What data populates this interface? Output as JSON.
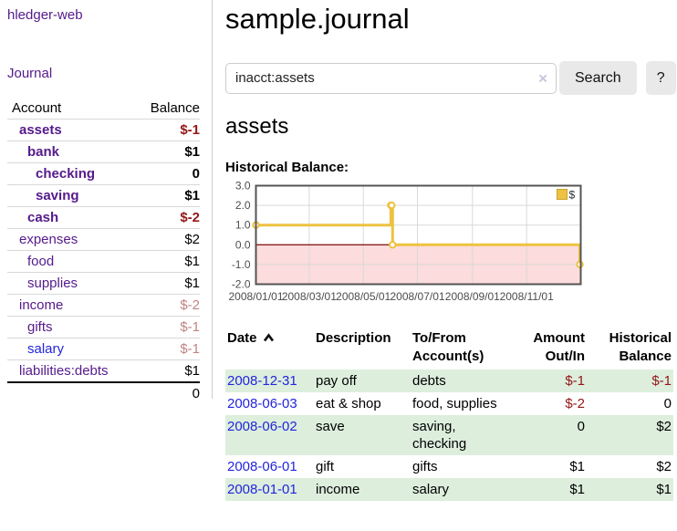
{
  "app": {
    "title": "hledger-web",
    "nav_journal": "Journal"
  },
  "sidebar": {
    "columns": {
      "account": "Account",
      "balance": "Balance"
    },
    "accounts": [
      {
        "name": "assets",
        "level": 1,
        "emph": true,
        "link_tone": "visited",
        "balance": "$-1",
        "balance_tone": "negative-strong"
      },
      {
        "name": "bank",
        "level": 2,
        "emph": true,
        "link_tone": "visited",
        "balance": "$1",
        "balance_tone": "normal"
      },
      {
        "name": "checking",
        "level": 3,
        "emph": true,
        "link_tone": "visited",
        "balance": "0",
        "balance_tone": "normal"
      },
      {
        "name": "saving",
        "level": 3,
        "emph": true,
        "link_tone": "visited",
        "balance": "$1",
        "balance_tone": "normal"
      },
      {
        "name": "cash",
        "level": 2,
        "emph": true,
        "link_tone": "visited",
        "balance": "$-2",
        "balance_tone": "negative-strong"
      },
      {
        "name": "expenses",
        "level": 1,
        "emph": false,
        "link_tone": "visited",
        "balance": "$2",
        "balance_tone": "normal"
      },
      {
        "name": "food",
        "level": 2,
        "emph": false,
        "link_tone": "visited",
        "balance": "$1",
        "balance_tone": "normal"
      },
      {
        "name": "supplies",
        "level": 2,
        "emph": false,
        "link_tone": "visited",
        "balance": "$1",
        "balance_tone": "normal"
      },
      {
        "name": "income",
        "level": 1,
        "emph": false,
        "link_tone": "visited",
        "balance": "$-2",
        "balance_tone": "negative-pale"
      },
      {
        "name": "gifts",
        "level": 2,
        "emph": false,
        "link_tone": "visited",
        "balance": "$-1",
        "balance_tone": "negative-pale"
      },
      {
        "name": "salary",
        "level": 2,
        "emph": false,
        "link_tone": "unvisited",
        "balance": "$-1",
        "balance_tone": "negative-pale"
      },
      {
        "name": "liabilities:debts",
        "level": 1,
        "emph": false,
        "link_tone": "visited",
        "balance": "$1",
        "balance_tone": "normal"
      }
    ],
    "total": "0"
  },
  "header": {
    "title": "sample.journal"
  },
  "search": {
    "query": "inacct:assets",
    "clear_icon": "×",
    "button_label": "Search",
    "help_label": "?"
  },
  "main": {
    "heading": "assets"
  },
  "chart_data": {
    "type": "line",
    "mode": "steps",
    "title": "Historical Balance:",
    "series": [
      {
        "name": "$",
        "color": "#edc240",
        "points": [
          [
            "2008-01-01",
            1
          ],
          [
            "2008-06-01",
            2
          ],
          [
            "2008-06-02",
            2
          ],
          [
            "2008-06-03",
            0
          ],
          [
            "2008-12-31",
            -1
          ]
        ]
      }
    ],
    "x_range": [
      "2008-01-01",
      "2009-01-01"
    ],
    "x_ticks": [
      "2008/01/01",
      "2008/03/01",
      "2008/05/01",
      "2008/07/01",
      "2008/09/01",
      "2008/11/01"
    ],
    "ylim": [
      -2,
      3
    ],
    "y_ticks": [
      "3.0",
      "2.0",
      "1.0",
      "0.0",
      "-1.0",
      "-2.0"
    ],
    "grid": true,
    "legend_position": "top-right",
    "zero_line_color": "#8b1c1c",
    "negative_region_color": "#fcdcdc"
  },
  "register": {
    "columns": {
      "date": "Date",
      "description": "Description",
      "accounts": "To/From Account(s)",
      "amount": "Amount Out/In",
      "balance": "Historical Balance"
    },
    "rows": [
      {
        "date": "2008-12-31",
        "description": "pay off",
        "accounts": "debts",
        "amount": "$-1",
        "amount_negative": true,
        "balance": "$-1",
        "balance_negative": true
      },
      {
        "date": "2008-06-03",
        "description": "eat & shop",
        "accounts": "food, supplies",
        "amount": "$-2",
        "amount_negative": true,
        "balance": "0",
        "balance_negative": false
      },
      {
        "date": "2008-06-02",
        "description": "save",
        "accounts": "saving, checking",
        "amount": "0",
        "amount_negative": false,
        "balance": "$2",
        "balance_negative": false
      },
      {
        "date": "2008-06-01",
        "description": "gift",
        "accounts": "gifts",
        "amount": "$1",
        "amount_negative": false,
        "balance": "$2",
        "balance_negative": false
      },
      {
        "date": "2008-01-01",
        "description": "income",
        "accounts": "salary",
        "amount": "$1",
        "amount_negative": false,
        "balance": "$1",
        "balance_negative": false
      }
    ]
  },
  "colors": {
    "link_visited_purple": "#551A8B",
    "link_blue": "#2225dd",
    "negative_strong_red": "#941616",
    "negative_pale_red": "#c08484",
    "row_stripe_green": "#ddeedd",
    "series_gold": "#edc240",
    "below_zero_pink": "#fcdcdc",
    "zero_line_dark_red": "#8b1c1c",
    "chart_border_gray": "#545454",
    "button_gray": "#e9e9e9"
  }
}
